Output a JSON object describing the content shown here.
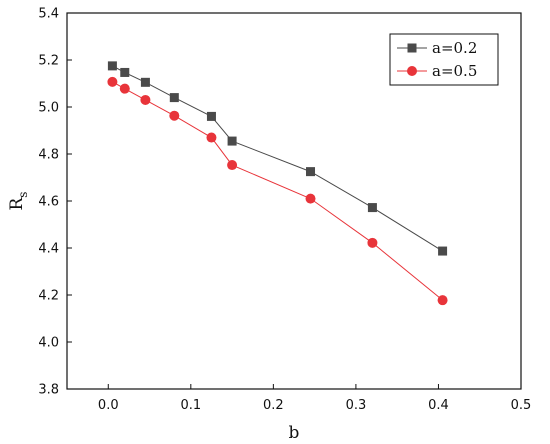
{
  "chart_data": {
    "type": "line",
    "xlabel": "b",
    "ylabel": "R",
    "ylabel_sub": "s",
    "xlim": [
      -0.05,
      0.5
    ],
    "ylim": [
      3.8,
      5.4
    ],
    "xticks": [
      0.0,
      0.1,
      0.2,
      0.3,
      0.4,
      0.5
    ],
    "xtick_labels": [
      "0.0",
      "0.1",
      "0.2",
      "0.3",
      "0.4",
      "0.5"
    ],
    "yticks": [
      3.8,
      4.0,
      4.2,
      4.4,
      4.6,
      4.8,
      5.0,
      5.2,
      5.4
    ],
    "ytick_labels": [
      "3.8",
      "4.0",
      "4.2",
      "4.4",
      "4.6",
      "4.8",
      "5.0",
      "5.2",
      "5.4"
    ],
    "grid": false,
    "legend_position": "top-right",
    "x": [
      0.005,
      0.02,
      0.045,
      0.08,
      0.125,
      0.15,
      0.245,
      0.32,
      0.405
    ],
    "series": [
      {
        "name": "a=0.2",
        "marker": "square",
        "color": "#4a4a4a",
        "values": [
          5.175,
          5.147,
          5.105,
          5.04,
          4.96,
          4.855,
          4.725,
          4.572,
          4.387
        ]
      },
      {
        "name": "a=0.5",
        "marker": "circle",
        "color": "#e8343a",
        "values": [
          5.107,
          5.078,
          5.03,
          4.963,
          4.87,
          4.753,
          4.61,
          4.422,
          4.178
        ]
      }
    ]
  }
}
